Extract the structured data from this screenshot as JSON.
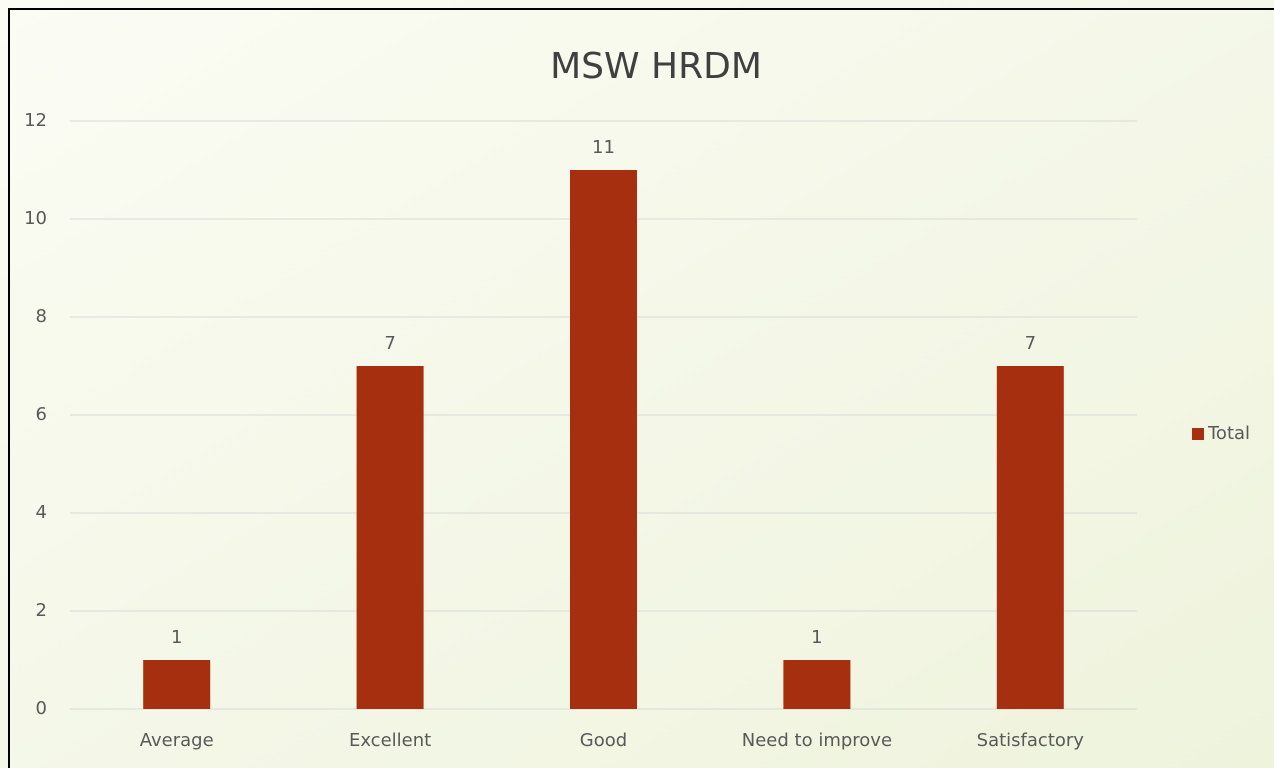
{
  "chart_data": {
    "type": "bar",
    "title": "MSW HRDM",
    "categories": [
      "Average",
      "Excellent",
      "Good",
      "Need to improve",
      "Satisfactory"
    ],
    "series": [
      {
        "name": "Total",
        "color": "#a52f0e",
        "values": [
          1,
          7,
          11,
          1,
          7
        ]
      }
    ],
    "ylim": [
      0,
      12
    ],
    "yticks": [
      0,
      2,
      4,
      6,
      8,
      10,
      12
    ],
    "grid": true,
    "legend": "right"
  }
}
